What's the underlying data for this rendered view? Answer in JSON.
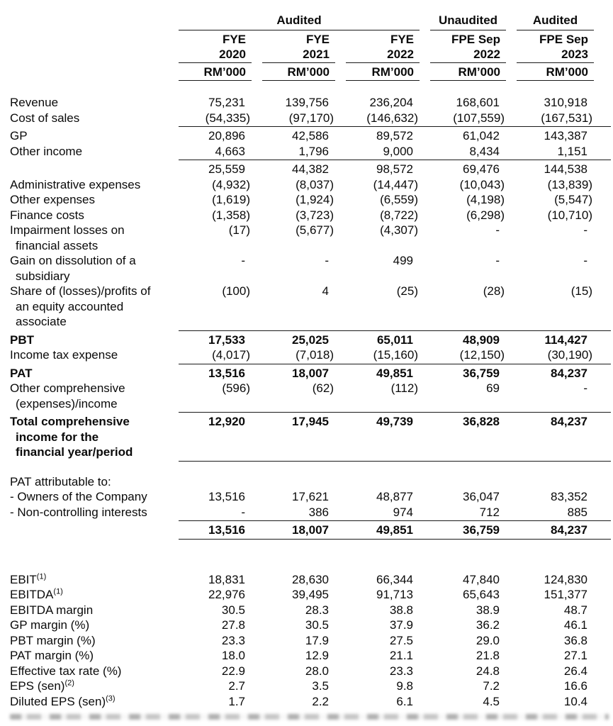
{
  "table": {
    "header": {
      "group_labels": {
        "audited_fye": "Audited",
        "unaudited_fpe": "Unaudited",
        "audited_fpe": "Audited"
      },
      "columns": [
        {
          "period": "FYE",
          "year": "2020",
          "unit": "RM’000"
        },
        {
          "period": "FYE",
          "year": "2021",
          "unit": "RM’000"
        },
        {
          "period": "FYE",
          "year": "2022",
          "unit": "RM’000"
        },
        {
          "period": "FPE Sep",
          "year": "2022",
          "unit": "RM’000"
        },
        {
          "period": "FPE Sep",
          "year": "2023",
          "unit": "RM’000"
        }
      ]
    },
    "rows": [
      {
        "label": [
          "Revenue"
        ],
        "values": [
          "75,231",
          "139,756",
          "236,204",
          "168,601",
          "310,918"
        ]
      },
      {
        "label": [
          "Cost of sales"
        ],
        "values": [
          "(54,335)",
          "(97,170)",
          "(146,632)",
          "(107,559)",
          "(167,531)"
        ],
        "lineBelow": true
      },
      {
        "label": [
          "GP"
        ],
        "values": [
          "20,896",
          "42,586",
          "89,572",
          "61,042",
          "143,387"
        ]
      },
      {
        "label": [
          "Other income"
        ],
        "values": [
          "4,663",
          "1,796",
          "9,000",
          "8,434",
          "1,151"
        ],
        "lineBelow": true
      },
      {
        "label": [
          ""
        ],
        "values": [
          "25,559",
          "44,382",
          "98,572",
          "69,476",
          "144,538"
        ]
      },
      {
        "label": [
          "Administrative expenses"
        ],
        "values": [
          "(4,932)",
          "(8,037)",
          "(14,447)",
          "(10,043)",
          "(13,839)"
        ]
      },
      {
        "label": [
          "Other expenses"
        ],
        "values": [
          "(1,619)",
          "(1,924)",
          "(6,559)",
          "(4,198)",
          "(5,547)"
        ]
      },
      {
        "label": [
          "Finance costs"
        ],
        "values": [
          "(1,358)",
          "(3,723)",
          "(8,722)",
          "(6,298)",
          "(10,710)"
        ]
      },
      {
        "label": [
          "Impairment losses on",
          "financial assets"
        ],
        "values": [
          "(17)",
          "(5,677)",
          "(4,307)",
          "-",
          "-"
        ]
      },
      {
        "label": [
          "Gain on dissolution of a",
          "subsidiary"
        ],
        "values": [
          "-",
          "-",
          "499",
          "-",
          "-"
        ]
      },
      {
        "label": [
          "Share of (losses)/profits of",
          "an equity accounted",
          "associate"
        ],
        "values": [
          "(100)",
          "4",
          "(25)",
          "(28)",
          "(15)"
        ],
        "lineBelow": true
      },
      {
        "label": [
          "PBT"
        ],
        "bold": true,
        "values": [
          "17,533",
          "25,025",
          "65,011",
          "48,909",
          "114,427"
        ]
      },
      {
        "label": [
          "Income tax expense"
        ],
        "values": [
          "(4,017)",
          "(7,018)",
          "(15,160)",
          "(12,150)",
          "(30,190)"
        ],
        "lineBelow": true
      },
      {
        "label": [
          "PAT"
        ],
        "bold": true,
        "values": [
          "13,516",
          "18,007",
          "49,851",
          "36,759",
          "84,237"
        ]
      },
      {
        "label": [
          "Other comprehensive",
          "(expenses)/income"
        ],
        "values": [
          "(596)",
          "(62)",
          "(112)",
          "69",
          "-"
        ],
        "lineBelow": true
      },
      {
        "label": [
          "Total comprehensive",
          "income for the",
          "financial year/period"
        ],
        "bold": true,
        "values": [
          "12,920",
          "17,945",
          "49,739",
          "36,828",
          "84,237"
        ],
        "lineBelow": true
      },
      {
        "label": [
          "PAT attributable to:"
        ],
        "values": [
          "",
          "",
          "",
          "",
          ""
        ],
        "gapBefore": 18
      },
      {
        "label": [
          "- Owners of the Company"
        ],
        "values": [
          "13,516",
          "17,621",
          "48,877",
          "36,047",
          "83,352"
        ]
      },
      {
        "label": [
          "- Non-controlling interests"
        ],
        "values": [
          "-",
          "386",
          "974",
          "712",
          "885"
        ],
        "lineBelow": true
      },
      {
        "label": [
          ""
        ],
        "bold": true,
        "values": [
          "13,516",
          "18,007",
          "49,851",
          "36,759",
          "84,237"
        ],
        "lineBelow": true
      },
      {
        "label": [
          "EBIT"
        ],
        "sup": "(1)",
        "values": [
          "18,831",
          "28,630",
          "66,344",
          "47,840",
          "124,830"
        ],
        "gapBefore": 46
      },
      {
        "label": [
          "EBITDA"
        ],
        "sup": "(1)",
        "values": [
          "22,976",
          "39,495",
          "91,713",
          "65,643",
          "151,377"
        ]
      },
      {
        "label": [
          "EBITDA margin"
        ],
        "values": [
          "30.5",
          "28.3",
          "38.8",
          "38.9",
          "48.7"
        ]
      },
      {
        "label": [
          "GP margin (%)"
        ],
        "values": [
          "27.8",
          "30.5",
          "37.9",
          "36.2",
          "46.1"
        ]
      },
      {
        "label": [
          "PBT margin (%)"
        ],
        "values": [
          "23.3",
          "17.9",
          "27.5",
          "29.0",
          "36.8"
        ]
      },
      {
        "label": [
          "PAT margin (%)"
        ],
        "values": [
          "18.0",
          "12.9",
          "21.1",
          "21.8",
          "27.1"
        ]
      },
      {
        "label": [
          "Effective tax rate (%)"
        ],
        "values": [
          "22.9",
          "28.0",
          "23.3",
          "24.8",
          "26.4"
        ]
      },
      {
        "label": [
          "EPS (sen)"
        ],
        "sup": "(2)",
        "values": [
          "2.7",
          "3.5",
          "9.8",
          "7.2",
          "16.6"
        ]
      },
      {
        "label": [
          "Diluted EPS (sen)"
        ],
        "sup": "(3)",
        "values": [
          "1.7",
          "2.2",
          "6.1",
          "4.5",
          "10.4"
        ]
      }
    ]
  }
}
